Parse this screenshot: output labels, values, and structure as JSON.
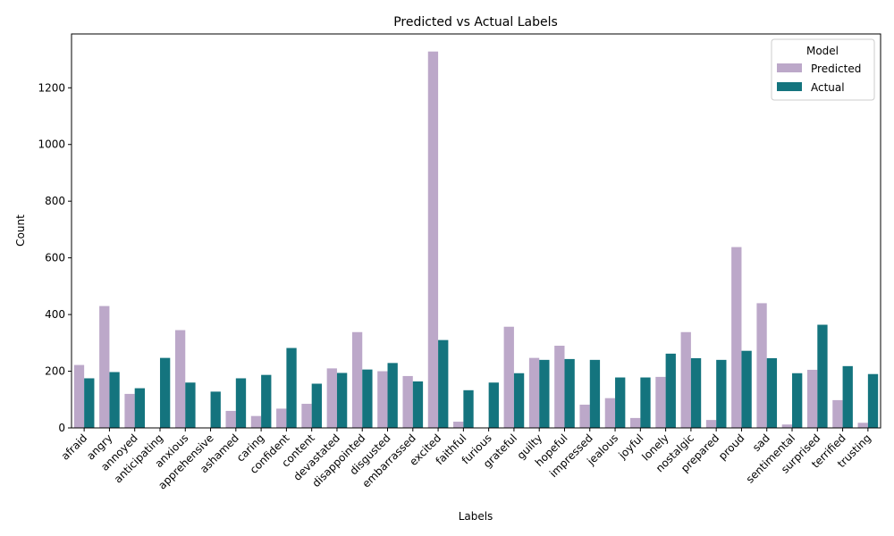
{
  "colors": {
    "predicted": "#bca8c9",
    "actual": "#14747e"
  },
  "chart_data": {
    "type": "bar",
    "title": "Predicted vs Actual Labels",
    "xlabel": "Labels",
    "ylabel": "Count",
    "ylim": [
      0,
      1390
    ],
    "yticks": [
      0,
      200,
      400,
      600,
      800,
      1000,
      1200
    ],
    "grid": false,
    "legend": {
      "title": "Model",
      "placement": "top-right"
    },
    "categories": [
      "afraid",
      "angry",
      "annoyed",
      "anticipating",
      "anxious",
      "apprehensive",
      "ashamed",
      "caring",
      "confident",
      "content",
      "devastated",
      "disappointed",
      "disgusted",
      "embarrassed",
      "excited",
      "faithful",
      "furious",
      "grateful",
      "guilty",
      "hopeful",
      "impressed",
      "jealous",
      "joyful",
      "lonely",
      "nostalgic",
      "prepared",
      "proud",
      "sad",
      "sentimental",
      "surprised",
      "terrified",
      "trusting"
    ],
    "series": [
      {
        "name": "Predicted",
        "values": [
          222,
          430,
          120,
          0,
          345,
          0,
          60,
          42,
          68,
          85,
          210,
          338,
          200,
          183,
          1328,
          22,
          0,
          357,
          247,
          290,
          82,
          105,
          35,
          180,
          338,
          28,
          638,
          440,
          12,
          205,
          98,
          18
        ]
      },
      {
        "name": "Actual",
        "values": [
          175,
          197,
          140,
          247,
          160,
          128,
          175,
          187,
          282,
          156,
          194,
          206,
          229,
          164,
          310,
          133,
          160,
          193,
          240,
          243,
          240,
          178,
          178,
          262,
          246,
          240,
          272,
          246,
          193,
          364,
          218,
          190
        ]
      }
    ]
  }
}
